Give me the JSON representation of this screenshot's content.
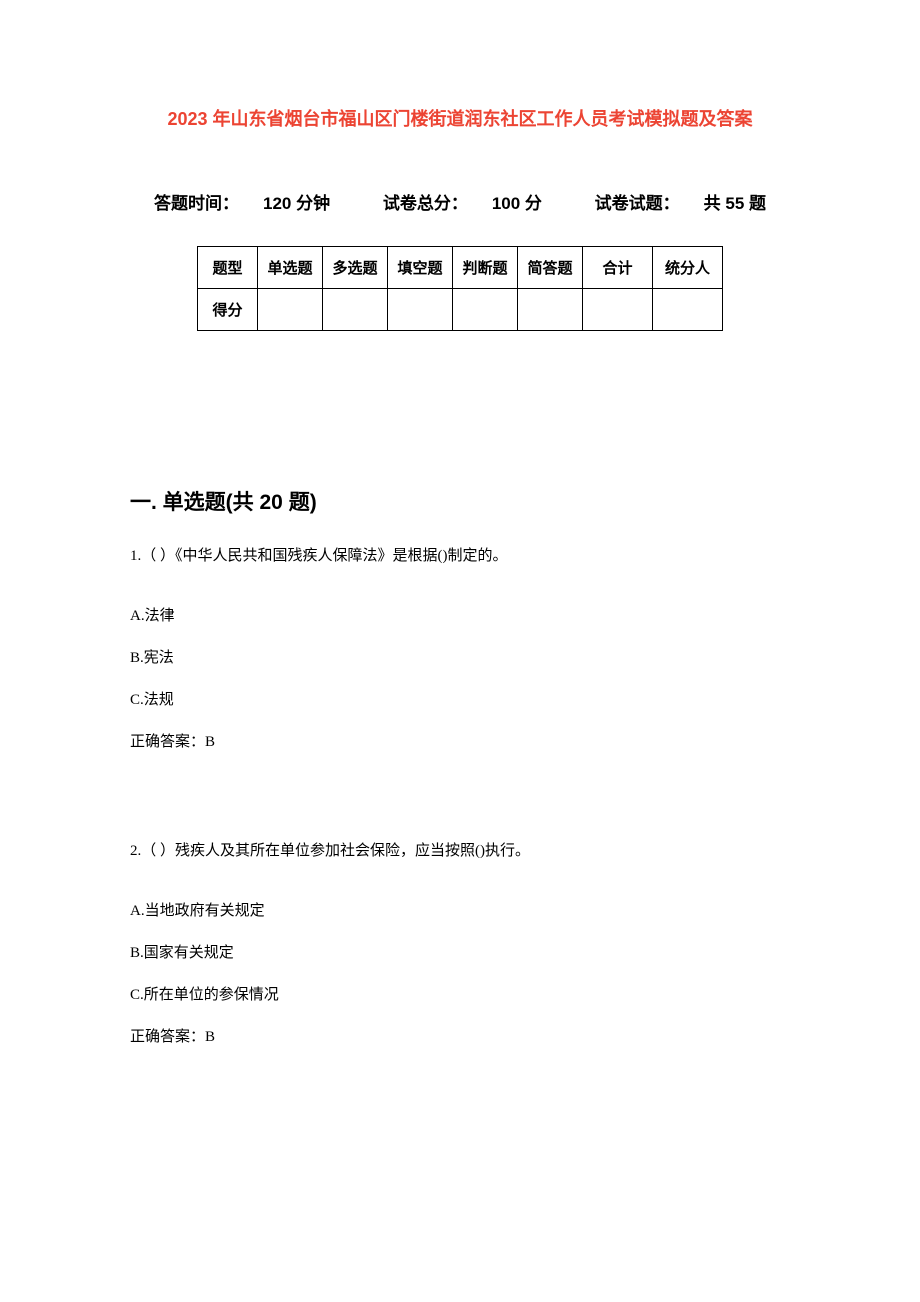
{
  "document": {
    "title": "2023 年山东省烟台市福山区门楼街道润东社区工作人员考试模拟题及答案",
    "title_color": "#ec4433",
    "title_fontsize": 18,
    "body_fontsize": 15,
    "section_fontsize": 21,
    "background_color": "#ffffff",
    "text_color": "#000000"
  },
  "exam_info": {
    "time_label": "答题时间：",
    "time_value": "120 分钟",
    "total_label": "试卷总分：",
    "total_value": "100 分",
    "count_label": "试卷试题：",
    "count_value": "共 55 题"
  },
  "score_table": {
    "border_color": "#000000",
    "header_row": {
      "label": "题型",
      "columns": [
        "单选题",
        "多选题",
        "填空题",
        "判断题",
        "简答题",
        "合计",
        "统分人"
      ]
    },
    "score_row_label": "得分"
  },
  "section": {
    "title": "一. 单选题(共 20 题)"
  },
  "questions": [
    {
      "number": "1.（ ）《中华人民共和国残疾人保障法》是根据()制定的。",
      "options": [
        "A.法律",
        "B.宪法",
        "C.法规"
      ],
      "answer": "正确答案：B"
    },
    {
      "number": "2.（ ）残疾人及其所在单位参加社会保险，应当按照()执行。",
      "options": [
        "A.当地政府有关规定",
        "B.国家有关规定",
        "C.所在单位的参保情况"
      ],
      "answer": "正确答案：B"
    }
  ]
}
